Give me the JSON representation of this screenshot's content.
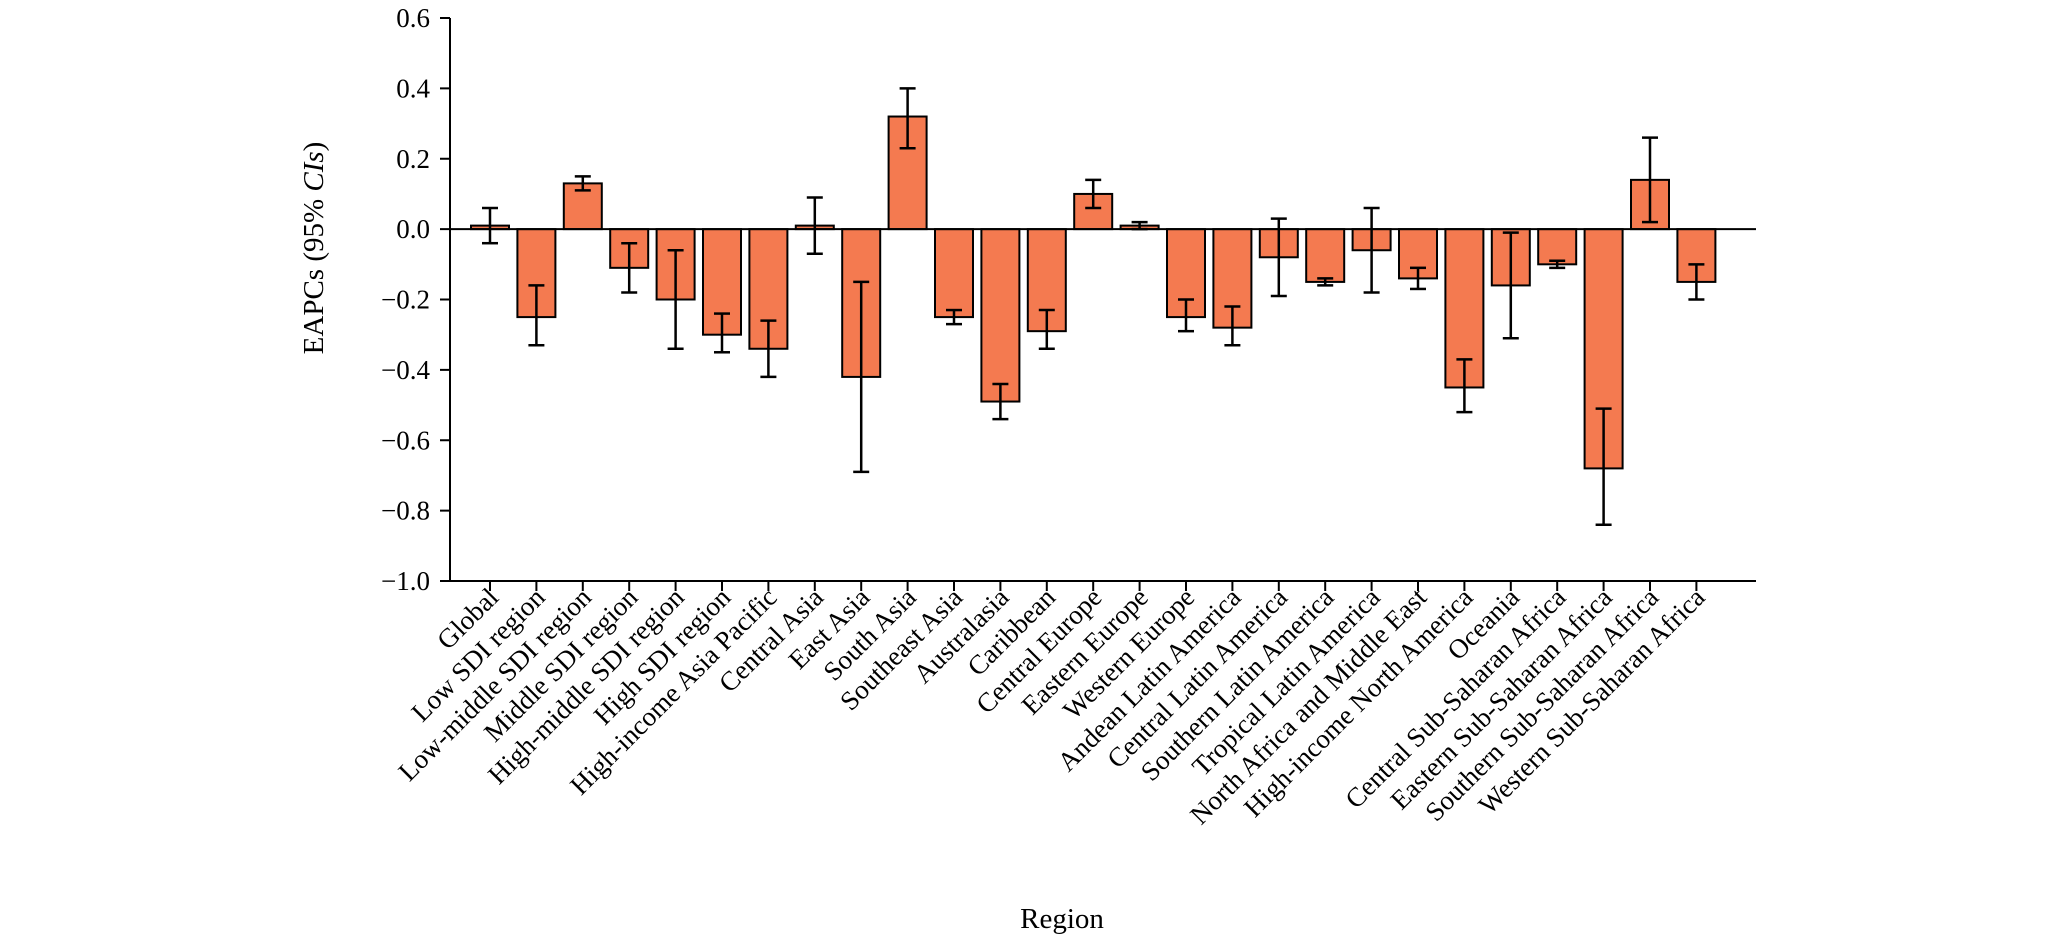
{
  "chart_data": {
    "type": "bar",
    "title": "",
    "xlabel": "Region",
    "ylabel_prefix": "EAPCs (95% ",
    "ylabel_italic": "CIs",
    "ylabel_suffix": ")",
    "ylim": [
      -1.0,
      0.6
    ],
    "yticks": [
      0.6,
      0.4,
      0.2,
      0.0,
      -0.2,
      -0.4,
      -0.6,
      -0.8,
      -1.0
    ],
    "ytick_labels": [
      "0.6",
      "0.4",
      "0.2",
      "0.0",
      "−0.2",
      "−0.4",
      "−0.6",
      "−0.8",
      "−1.0"
    ],
    "bar_color": "#F47A50",
    "categories": [
      "Global",
      "Low SDI region",
      "Low-middle SDI region",
      "Middle SDI region",
      "High-middle SDI region",
      "High SDI region",
      "High-income Asia Pacific",
      "Central Asia",
      "East Asia",
      "South Asia",
      "Southeast Asia",
      "Australasia",
      "Caribbean",
      "Central Europe",
      "Eastern Europe",
      "Western Europe",
      "Andean Latin America",
      "Central Latin America",
      "Southern Latin America",
      "Tropical Latin America",
      "North Africa and Middle East",
      "High-income North America",
      "Oceania",
      "Central Sub-Saharan Africa",
      "Eastern Sub-Saharan Africa",
      "Southern Sub-Saharan Africa",
      "Western Sub-Saharan Africa"
    ],
    "values": [
      0.01,
      -0.25,
      0.13,
      -0.11,
      -0.2,
      -0.3,
      -0.34,
      0.01,
      -0.42,
      0.32,
      -0.25,
      -0.49,
      -0.29,
      0.1,
      0.01,
      -0.25,
      -0.28,
      -0.08,
      -0.15,
      -0.06,
      -0.14,
      -0.45,
      -0.16,
      -0.1,
      -0.68,
      0.14,
      -0.15
    ],
    "ci_lower": [
      -0.04,
      -0.33,
      0.11,
      -0.18,
      -0.34,
      -0.35,
      -0.42,
      -0.07,
      -0.69,
      0.23,
      -0.27,
      -0.54,
      -0.34,
      0.06,
      0.0,
      -0.29,
      -0.33,
      -0.19,
      -0.16,
      -0.18,
      -0.17,
      -0.52,
      -0.31,
      -0.11,
      -0.84,
      0.02,
      -0.2
    ],
    "ci_upper": [
      0.06,
      -0.16,
      0.15,
      -0.04,
      -0.06,
      -0.24,
      -0.26,
      0.09,
      -0.15,
      0.4,
      -0.23,
      -0.44,
      -0.23,
      0.14,
      0.02,
      -0.2,
      -0.22,
      0.03,
      -0.14,
      0.06,
      -0.11,
      -0.37,
      -0.01,
      -0.09,
      -0.51,
      0.26,
      -0.1
    ]
  }
}
